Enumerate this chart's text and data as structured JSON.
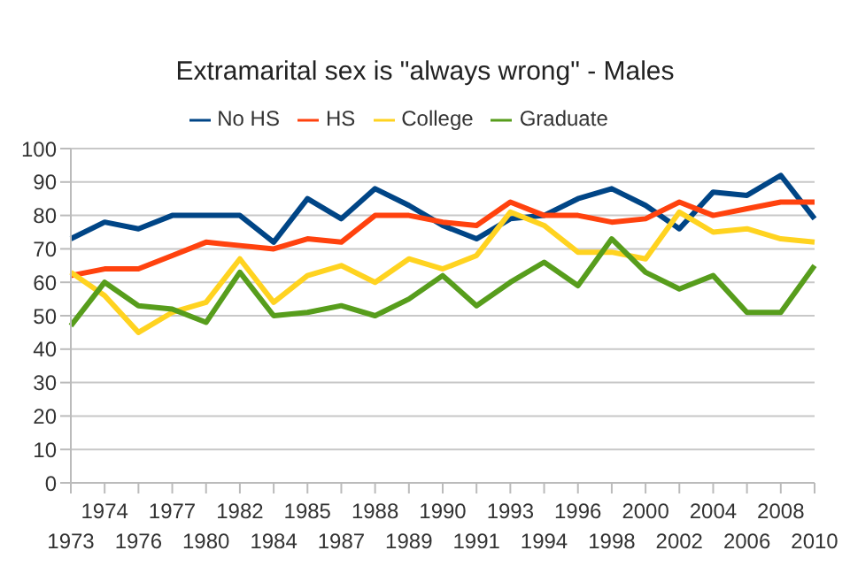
{
  "chart_data": {
    "type": "line",
    "title": "Extramarital sex is \"always wrong\" - Males",
    "categories": [
      "1973",
      "1974",
      "1976",
      "1977",
      "1980",
      "1982",
      "1984",
      "1985",
      "1987",
      "1988",
      "1989",
      "1990",
      "1991",
      "1993",
      "1994",
      "1996",
      "1998",
      "2000",
      "2002",
      "2004",
      "2006",
      "2008",
      "2010"
    ],
    "series": [
      {
        "name": "No HS",
        "color": "#004586",
        "values": [
          73,
          78,
          76,
          80,
          80,
          80,
          72,
          85,
          79,
          88,
          83,
          77,
          73,
          79,
          80,
          85,
          88,
          83,
          76,
          87,
          86,
          92,
          79
        ]
      },
      {
        "name": "HS",
        "color": "#ff420e",
        "values": [
          62,
          64,
          64,
          68,
          72,
          71,
          70,
          73,
          72,
          80,
          80,
          78,
          77,
          84,
          80,
          80,
          78,
          79,
          84,
          80,
          82,
          84,
          84
        ]
      },
      {
        "name": "College",
        "color": "#ffd320",
        "values": [
          63,
          56,
          45,
          51,
          54,
          67,
          54,
          62,
          65,
          60,
          67,
          64,
          68,
          81,
          77,
          69,
          69,
          67,
          81,
          75,
          76,
          73,
          72
        ]
      },
      {
        "name": "Graduate",
        "color": "#579d1c",
        "values": [
          47,
          60,
          53,
          52,
          48,
          63,
          50,
          51,
          53,
          50,
          55,
          62,
          53,
          60,
          66,
          59,
          73,
          63,
          58,
          62,
          51,
          51,
          65
        ]
      }
    ],
    "ylim": [
      0,
      100
    ],
    "yticks": [
      0,
      10,
      20,
      30,
      40,
      50,
      60,
      70,
      80,
      90,
      100
    ],
    "grid": "y",
    "legend": "top",
    "marker": "none",
    "line_style": "solid"
  }
}
